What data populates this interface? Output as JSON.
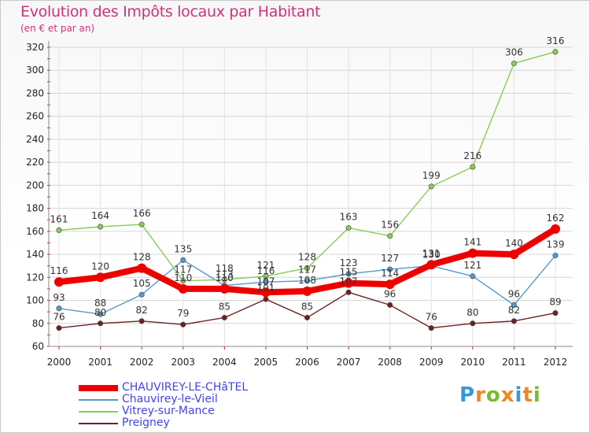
{
  "title": "Evolution des Impôts locaux par Habitant",
  "subtitle": "(en € et par an)",
  "brand": "Proxiti",
  "chart_data": {
    "type": "line",
    "categories": [
      "2000",
      "2001",
      "2002",
      "2003",
      "2004",
      "2005",
      "2006",
      "2007",
      "2008",
      "2009",
      "2010",
      "2011",
      "2012"
    ],
    "ylim": [
      60,
      320
    ],
    "yticks": [
      60,
      80,
      100,
      120,
      140,
      160,
      180,
      200,
      220,
      240,
      260,
      280,
      300,
      320
    ],
    "series": [
      {
        "name": "CHAUVIREY-LE-CHâTEL",
        "color": "#ee0000",
        "values": [
          116,
          120,
          128,
          110,
          110,
          107,
          108,
          115,
          114,
          131,
          141,
          140,
          162
        ],
        "labels": [
          "116",
          "120",
          "128",
          "110",
          "110",
          "107",
          "108",
          "115",
          "114",
          "131",
          "141",
          "140",
          "162"
        ]
      },
      {
        "name": "Chauvirey-le-Vieil",
        "color": "#5599cc",
        "values": [
          93,
          88,
          105,
          135,
          113,
          116,
          117,
          123,
          127,
          130,
          121,
          96,
          139
        ],
        "labels": [
          "93",
          "88",
          "105",
          "135",
          "113",
          "116",
          "117",
          "123",
          "127",
          "130",
          "121",
          "96",
          "139"
        ]
      },
      {
        "name": "Vitrey-sur-Mance",
        "color": "#88cc55",
        "values": [
          161,
          164,
          166,
          117,
          118,
          121,
          128,
          163,
          156,
          199,
          216,
          306,
          316
        ],
        "labels": [
          "161",
          "164",
          "166",
          "117",
          "118",
          "121",
          "128",
          "163",
          "156",
          "199",
          "216",
          "306",
          "316"
        ]
      },
      {
        "name": "Preigney",
        "color": "#6b2222",
        "values": [
          76,
          80,
          82,
          79,
          85,
          101,
          85,
          107,
          96,
          76,
          80,
          82,
          89
        ],
        "labels": [
          "76",
          "80",
          "82",
          "79",
          "85",
          "101",
          "85",
          "107",
          "96",
          "76",
          "80",
          "82",
          "89"
        ]
      }
    ]
  }
}
